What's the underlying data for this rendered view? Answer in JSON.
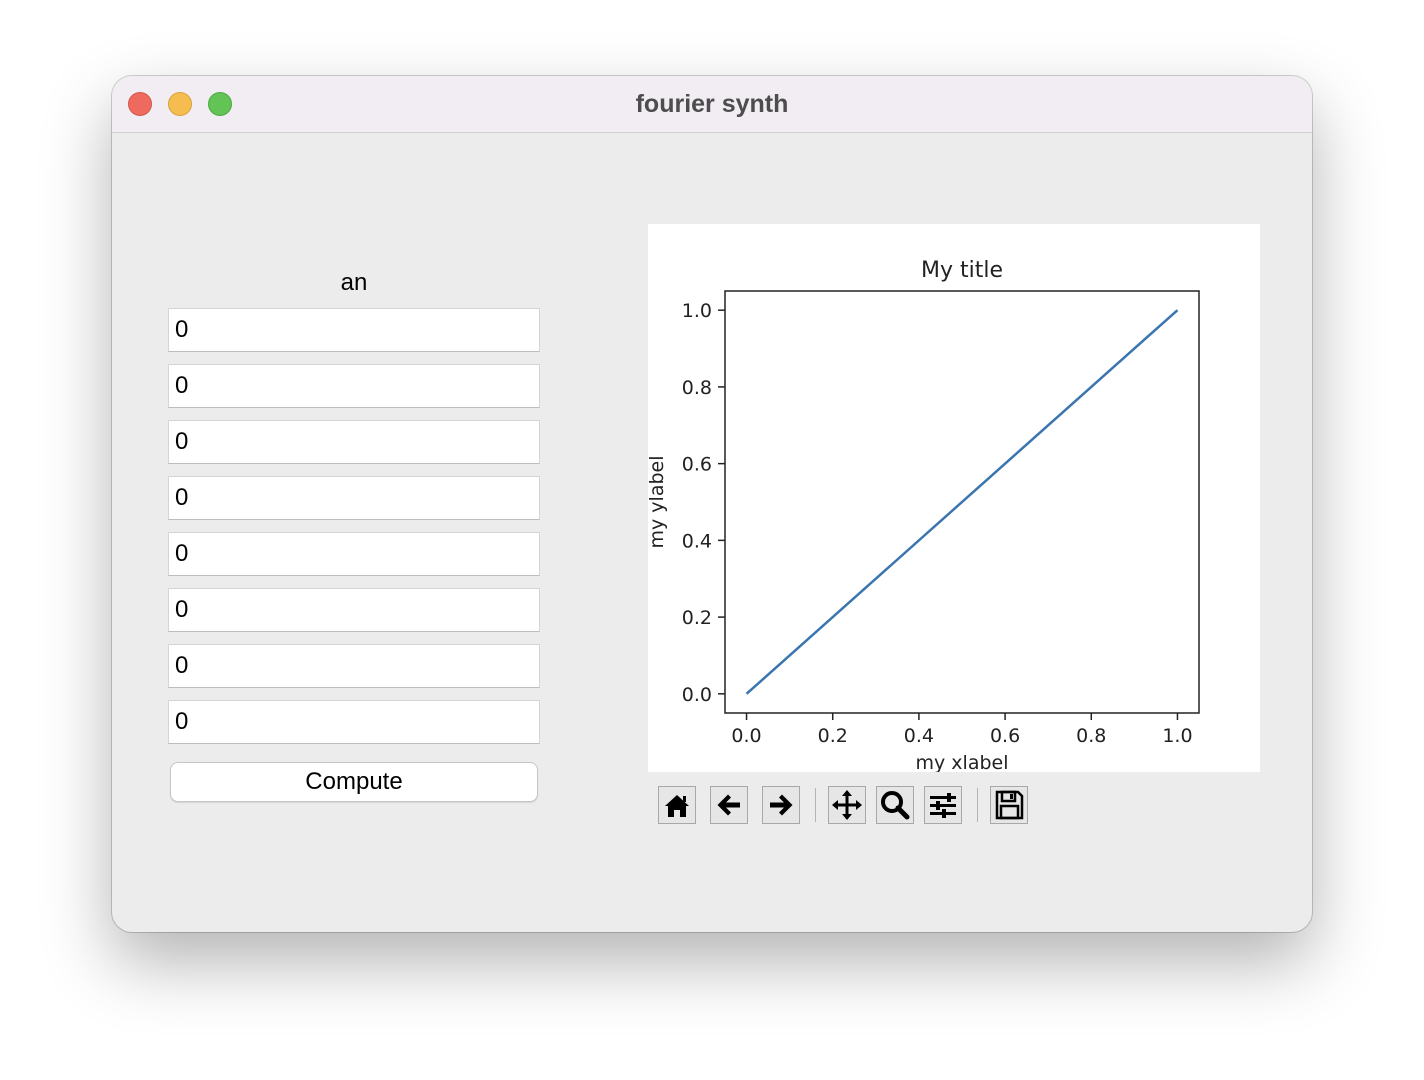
{
  "window": {
    "title": "fourier synth"
  },
  "left_panel": {
    "label": "an",
    "fields": [
      "0",
      "0",
      "0",
      "0",
      "0",
      "0",
      "0",
      "0"
    ],
    "compute_label": "Compute"
  },
  "chart_data": {
    "type": "line",
    "title": "My title",
    "xlabel": "my xlabel",
    "ylabel": "my ylabel",
    "x": [
      0.0,
      1.0
    ],
    "series": [
      {
        "values": [
          0.0,
          1.0
        ],
        "color": "#3b75af"
      }
    ],
    "xlim": [
      -0.05,
      1.05
    ],
    "ylim": [
      -0.05,
      1.05
    ],
    "xticks": [
      0.0,
      0.2,
      0.4,
      0.6,
      0.8,
      1.0
    ],
    "yticks": [
      0.0,
      0.2,
      0.4,
      0.6,
      0.8,
      1.0
    ],
    "xtick_labels": [
      "0.0",
      "0.2",
      "0.4",
      "0.6",
      "0.8",
      "1.0"
    ],
    "ytick_labels": [
      "0.0",
      "0.2",
      "0.4",
      "0.6",
      "0.8",
      "1.0"
    ],
    "grid": false
  },
  "toolbar": {
    "buttons": [
      "home-icon",
      "back-arrow-icon",
      "forward-arrow-icon",
      "pan-icon",
      "zoom-icon",
      "configure-subplots-icon",
      "save-icon"
    ]
  }
}
